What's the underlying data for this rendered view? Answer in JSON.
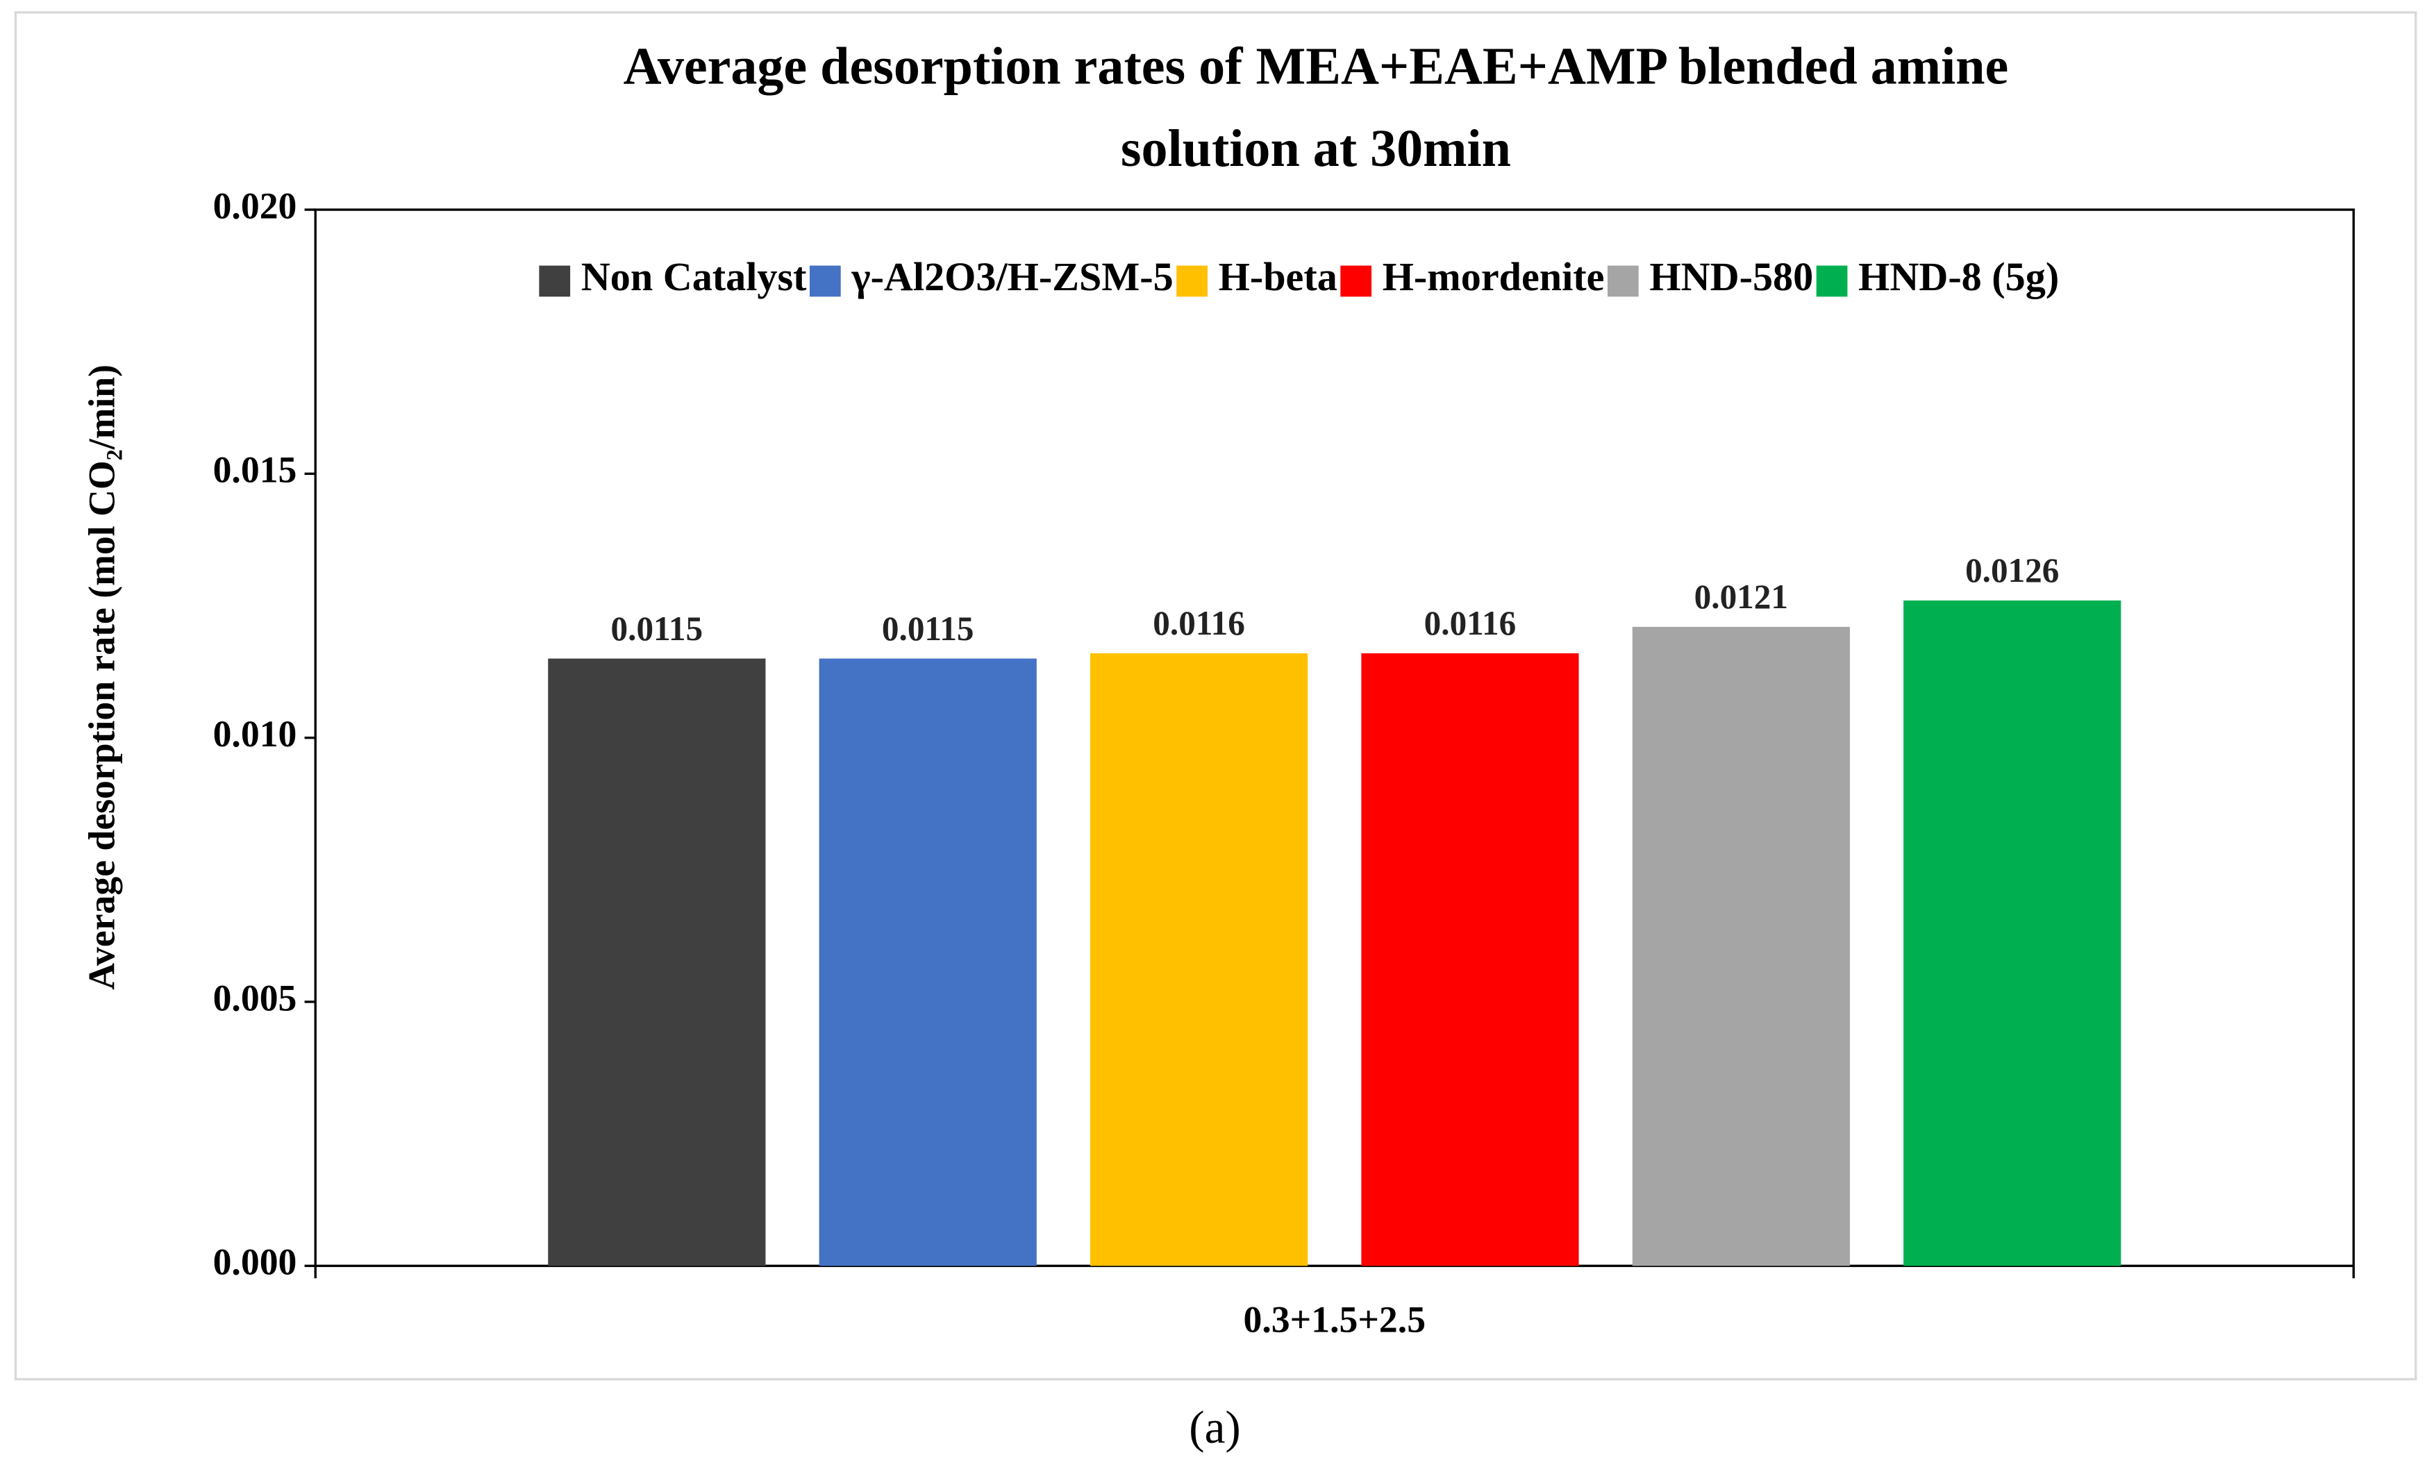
{
  "chart_data": {
    "type": "bar",
    "title": [
      "Average desorption rates of MEA+EAE+AMP blended amine",
      "solution at  30min"
    ],
    "y_label": "Average desorption rate (mol CO₂/min)",
    "categories": [
      "0.3+1.5+2.5"
    ],
    "series": [
      {
        "name": "Non Catalyst",
        "color": "#404040",
        "values": [
          0.0115
        ]
      },
      {
        "name": "γ-Al2O3/H-ZSM-5",
        "color": "#4472c4",
        "values": [
          0.0115
        ]
      },
      {
        "name": "H-beta",
        "color": "#ffc000",
        "values": [
          0.0116
        ]
      },
      {
        "name": "H-mordenite",
        "color": "#ff0000",
        "values": [
          0.0116
        ]
      },
      {
        "name": "HND-580",
        "color": "#a5a5a5",
        "values": [
          0.0121
        ]
      },
      {
        "name": "HND-8 (5g)",
        "color": "#00b050",
        "values": [
          0.0126
        ]
      }
    ],
    "ylim": [
      0,
      0.02
    ],
    "yticks": [
      {
        "value": 0,
        "label": "0.000"
      },
      {
        "value": 0.005,
        "label": "0.005"
      },
      {
        "value": 0.01,
        "label": "0.010"
      },
      {
        "value": 0.015,
        "label": "0.015"
      },
      {
        "value": 0.02,
        "label": "0.020"
      }
    ],
    "grid": false,
    "legend": "top",
    "caption": "(a)"
  }
}
